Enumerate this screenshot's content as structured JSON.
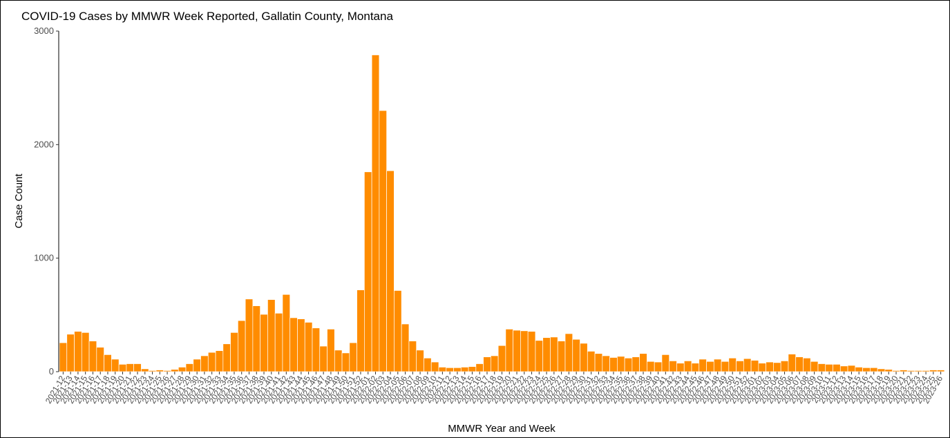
{
  "chart_data": {
    "type": "bar",
    "title": "COVID-19 Cases by MMWR Week Reported, Gallatin County, Montana",
    "xlabel": "MMWR Year and Week",
    "ylabel": "Case Count",
    "ylim": [
      0,
      3000
    ],
    "yticks": [
      0,
      1000,
      2000,
      3000
    ],
    "grid": false,
    "bar_color": "#FF8C00",
    "categories": [
      "2021-12",
      "2021-13",
      "2021-14",
      "2021-15",
      "2021-16",
      "2021-17",
      "2021-18",
      "2021-19",
      "2021-20",
      "2021-21",
      "2021-22",
      "2021-23",
      "2021-24",
      "2021-25",
      "2021-26",
      "2021-27",
      "2021-28",
      "2021-29",
      "2021-30",
      "2021-31",
      "2021-32",
      "2021-33",
      "2021-34",
      "2021-35",
      "2021-36",
      "2021-37",
      "2021-38",
      "2021-39",
      "2021-40",
      "2021-41",
      "2021-42",
      "2021-43",
      "2021-44",
      "2021-45",
      "2021-46",
      "2021-47",
      "2021-48",
      "2021-49",
      "2021-50",
      "2021-51",
      "2021-52",
      "2022-01",
      "2022-02",
      "2022-03",
      "2022-04",
      "2022-05",
      "2022-06",
      "2022-07",
      "2022-08",
      "2022-09",
      "2022-10",
      "2022-11",
      "2022-12",
      "2022-13",
      "2022-14",
      "2022-15",
      "2022-16",
      "2022-17",
      "2022-18",
      "2022-19",
      "2022-20",
      "2022-21",
      "2022-22",
      "2022-23",
      "2022-24",
      "2022-25",
      "2022-26",
      "2022-27",
      "2022-28",
      "2022-29",
      "2022-30",
      "2022-31",
      "2022-32",
      "2022-33",
      "2022-34",
      "2022-35",
      "2022-36",
      "2022-37",
      "2022-38",
      "2022-39",
      "2022-40",
      "2022-41",
      "2022-42",
      "2022-43",
      "2022-44",
      "2022-45",
      "2022-46",
      "2022-47",
      "2022-48",
      "2022-49",
      "2022-50",
      "2022-51",
      "2022-52",
      "2023-01",
      "2023-02",
      "2023-03",
      "2023-04",
      "2023-05",
      "2023-06",
      "2023-07",
      "2023-08",
      "2023-09",
      "2023-10",
      "2023-11",
      "2023-12",
      "2023-13",
      "2023-14",
      "2023-15",
      "2023-16",
      "2023-17",
      "2023-18",
      "2023-19",
      "2023-20",
      "2023-21",
      "2023-22",
      "2023-23",
      "2023-24",
      "2023-25",
      "2023-26"
    ],
    "values": [
      255,
      330,
      355,
      345,
      270,
      215,
      150,
      110,
      65,
      70,
      70,
      25,
      10,
      15,
      10,
      20,
      40,
      70,
      110,
      140,
      170,
      185,
      245,
      345,
      450,
      640,
      580,
      505,
      635,
      515,
      680,
      475,
      465,
      435,
      385,
      225,
      375,
      190,
      165,
      255,
      720,
      1760,
      2790,
      2300,
      1770,
      715,
      420,
      270,
      190,
      120,
      85,
      40,
      35,
      35,
      40,
      45,
      70,
      130,
      140,
      230,
      375,
      365,
      360,
      355,
      275,
      300,
      305,
      270,
      335,
      285,
      250,
      180,
      160,
      140,
      125,
      135,
      120,
      130,
      160,
      90,
      85,
      150,
      95,
      75,
      95,
      75,
      110,
      90,
      110,
      90,
      120,
      95,
      115,
      100,
      75,
      85,
      80,
      95,
      155,
      130,
      120,
      90,
      70,
      65,
      65,
      50,
      55,
      40,
      35,
      35,
      25,
      20,
      10,
      15,
      10,
      10,
      10,
      15,
      15
    ]
  }
}
